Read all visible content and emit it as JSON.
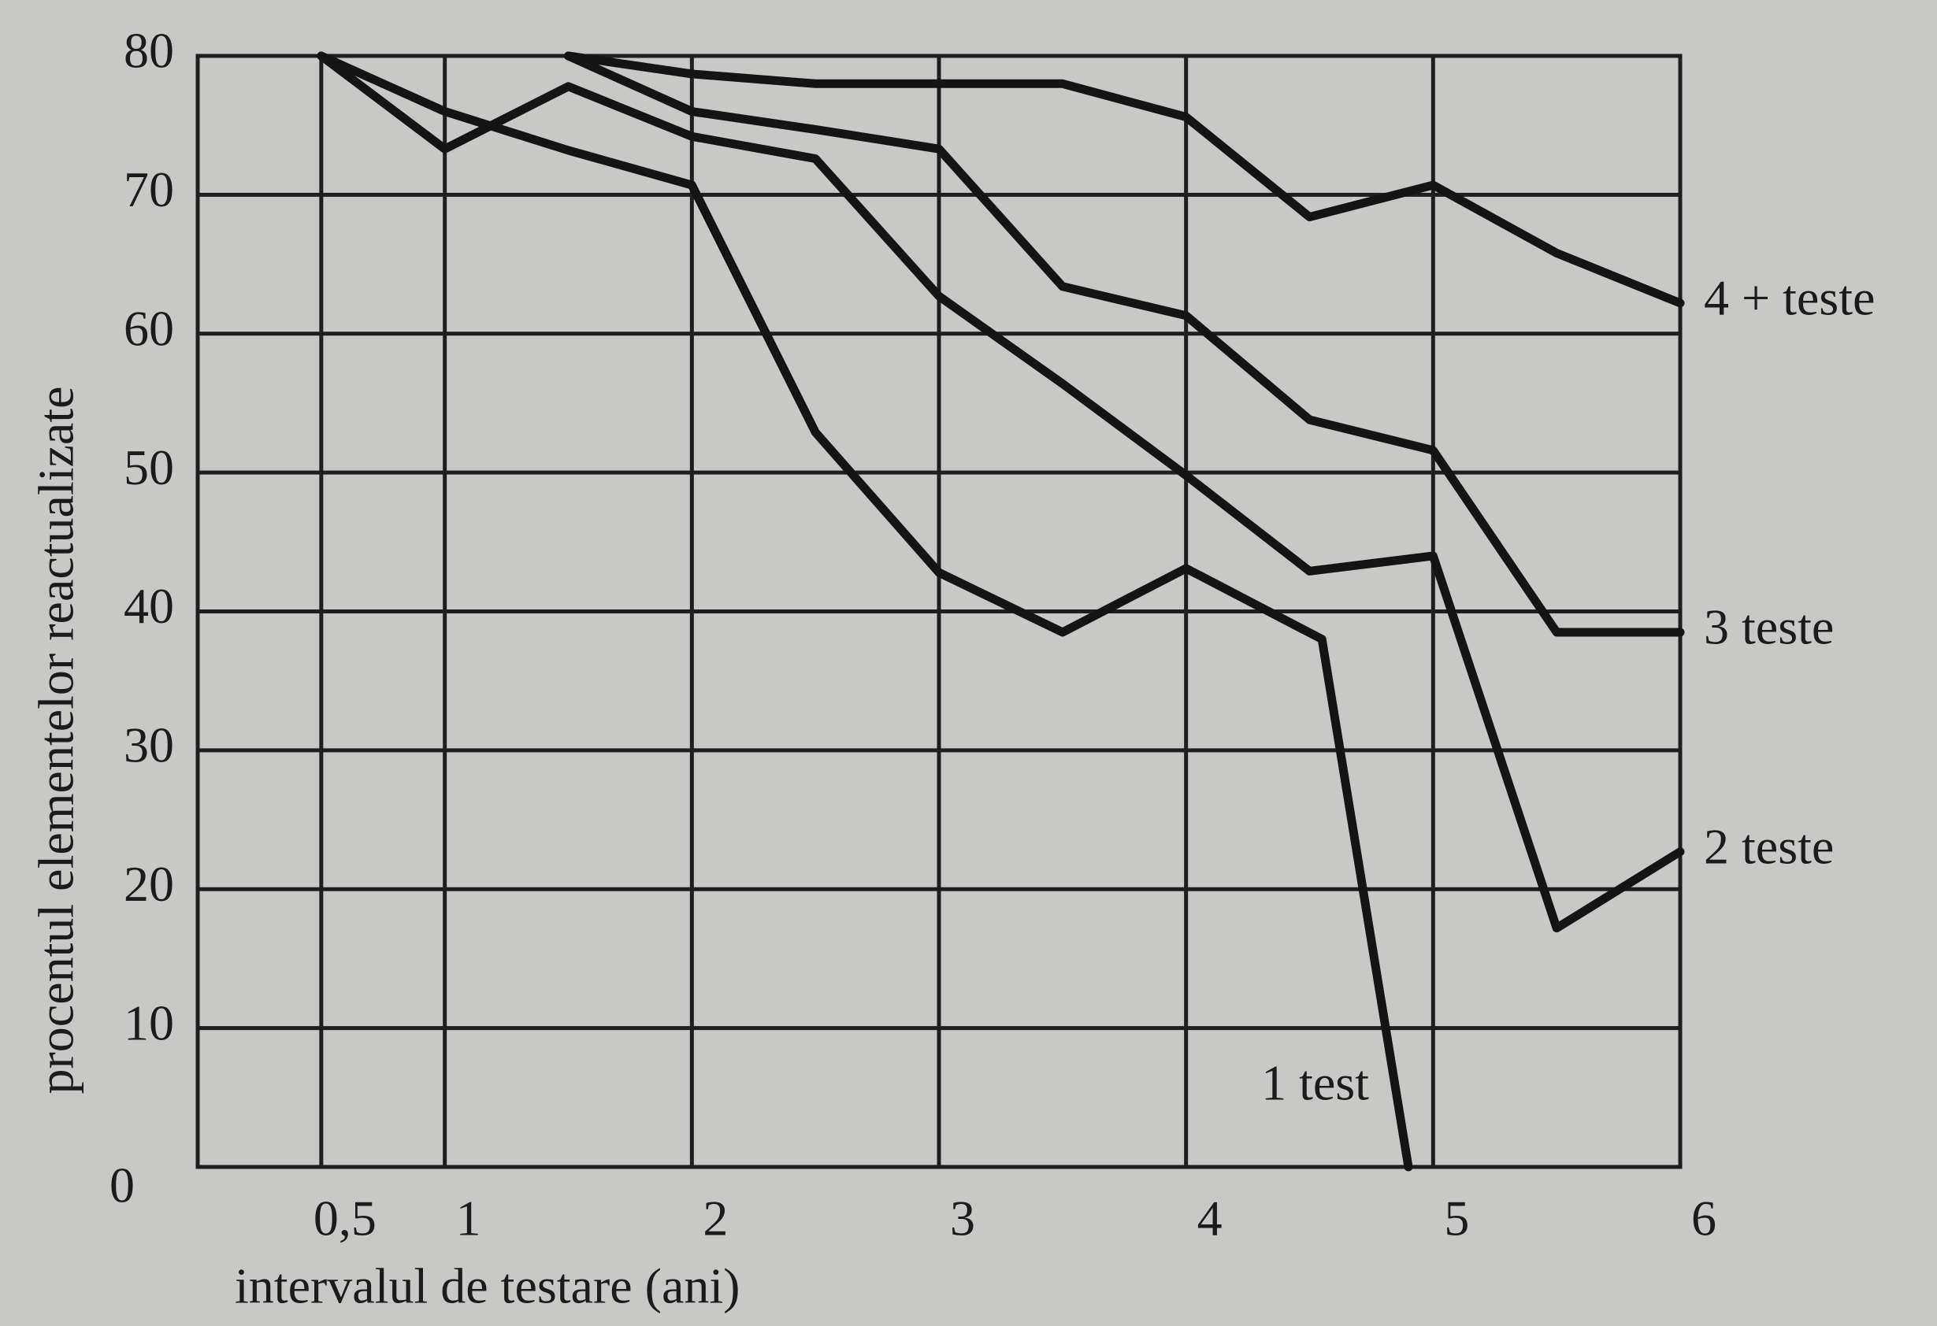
{
  "chart_data": {
    "type": "line",
    "ylabel": "procentul elementelor reactualizate",
    "xlabel": "intervalul de testare (ani)",
    "xlim": [
      0,
      6
    ],
    "ylim": [
      0,
      80
    ],
    "xticks": [
      {
        "value": 0.5,
        "label": "0,5"
      },
      1,
      2,
      3,
      4,
      5,
      6
    ],
    "yticks": [
      0,
      10,
      20,
      30,
      40,
      50,
      60,
      70,
      80
    ],
    "grid": true,
    "series": [
      {
        "name": "4 + teste",
        "color": "#141414",
        "x": [
          1.5,
          2,
          2.5,
          3,
          3.5,
          4,
          4.5,
          5,
          5.5,
          6
        ],
        "values": [
          80,
          78.7,
          78,
          78,
          78,
          75.6,
          68.4,
          70.7,
          65.8,
          62.2
        ]
      },
      {
        "name": "3 teste",
        "color": "#141414",
        "x": [
          1.5,
          2,
          2.5,
          3,
          3.5,
          4,
          4.5,
          5,
          5.5,
          6
        ],
        "values": [
          80,
          76,
          74.7,
          73.3,
          63.4,
          61.3,
          53.8,
          51.6,
          38.5,
          38.5
        ]
      },
      {
        "name": "2 teste",
        "color": "#141414",
        "x": [
          0.5,
          1,
          1.5,
          2,
          2.5,
          3,
          3.5,
          4,
          4.5,
          5,
          5.5,
          6
        ],
        "values": [
          80,
          73.3,
          77.8,
          74.2,
          72.6,
          62.7,
          56.4,
          49.8,
          42.9,
          44,
          17.2,
          22.7
        ]
      },
      {
        "name": "1 test",
        "color": "#141414",
        "x": [
          0.5,
          1,
          1.5,
          2,
          2.5,
          3,
          3.5,
          4,
          4.55,
          4.9
        ],
        "values": [
          80,
          76,
          73.2,
          70.7,
          52.9,
          42.8,
          38.5,
          43.1,
          38,
          0
        ]
      }
    ]
  }
}
